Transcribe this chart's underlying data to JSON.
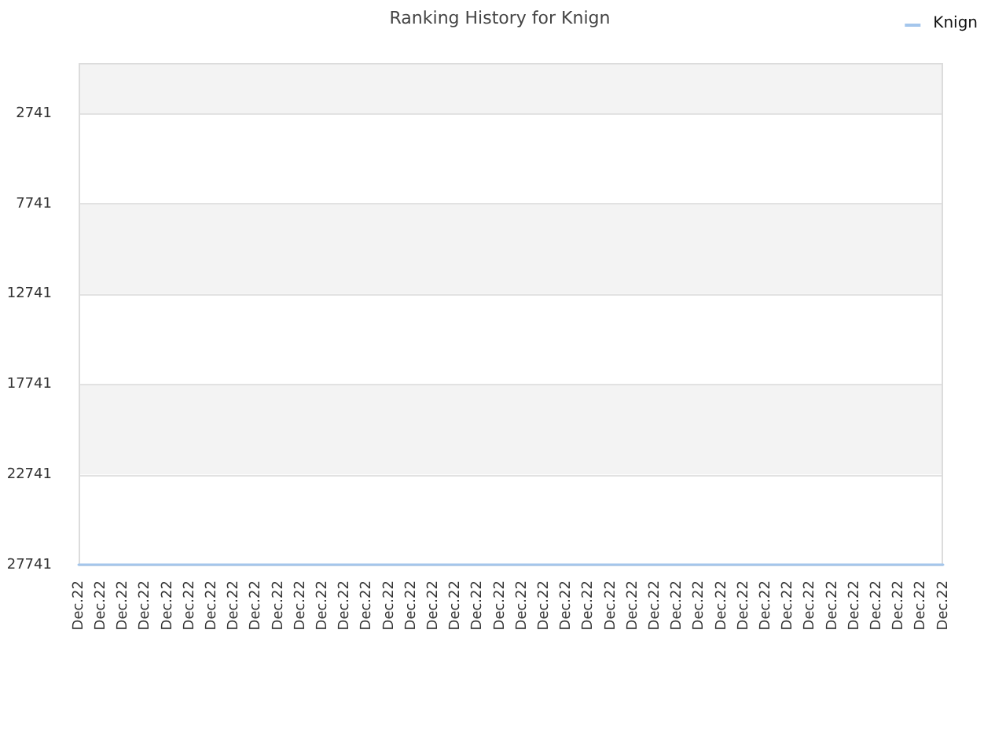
{
  "chart_data": {
    "type": "line",
    "title": "Ranking History for Knign",
    "categories": [
      "Dec.22",
      "Dec.22",
      "Dec.22",
      "Dec.22",
      "Dec.22",
      "Dec.22",
      "Dec.22",
      "Dec.22",
      "Dec.22",
      "Dec.22",
      "Dec.22",
      "Dec.22",
      "Dec.22",
      "Dec.22",
      "Dec.22",
      "Dec.22",
      "Dec.22",
      "Dec.22",
      "Dec.22",
      "Dec.22",
      "Dec.22",
      "Dec.22",
      "Dec.22",
      "Dec.22",
      "Dec.22",
      "Dec.22",
      "Dec.22",
      "Dec.22",
      "Dec.22",
      "Dec.22",
      "Dec.22",
      "Dec.22",
      "Dec.22",
      "Dec.22",
      "Dec.22",
      "Dec.22",
      "Dec.22",
      "Dec.22",
      "Dec.22",
      "Dec.22"
    ],
    "series": [
      {
        "name": "Knign",
        "color": "#a4c6ec",
        "values": [
          27741,
          27741,
          27741,
          27741,
          27741,
          27741,
          27741,
          27741,
          27741,
          27741,
          27741,
          27741,
          27741,
          27741,
          27741,
          27741,
          27741,
          27741,
          27741,
          27741,
          27741,
          27741,
          27741,
          27741,
          27741,
          27741,
          27741,
          27741,
          27741,
          27741,
          27741,
          27741,
          27741,
          27741,
          27741,
          27741,
          27741,
          27741,
          27741,
          27741
        ]
      }
    ],
    "ylim": [
      27741,
      -50
    ],
    "yticks": [
      2741,
      7741,
      12741,
      17741,
      22741,
      27741
    ],
    "grid": "y",
    "legend": "top right",
    "marker": "none"
  }
}
